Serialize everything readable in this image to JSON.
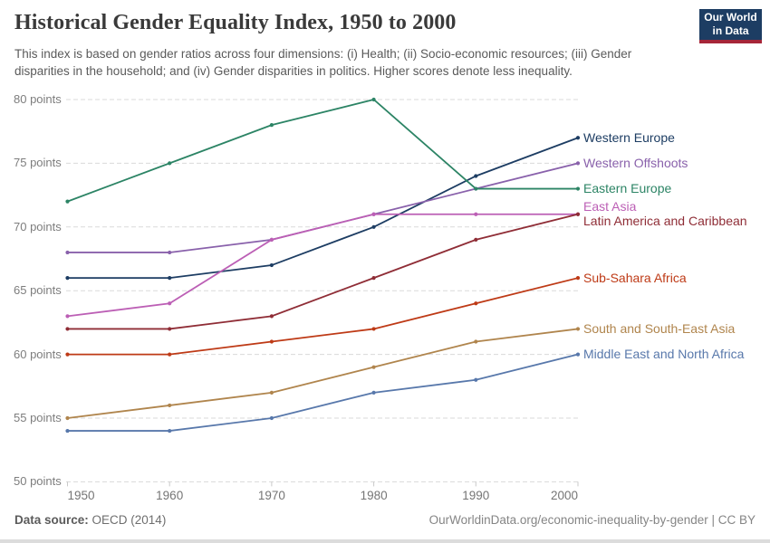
{
  "header": {
    "title": "Historical Gender Equality Index, 1950 to 2000",
    "subtitle": "This index is based on gender ratios across four dimensions: (i) Health; (ii) Socio-economic resources; (iii) Gender disparities in the household; and (iv) Gender disparities in politics. Higher scores denote less inequality.",
    "logo": {
      "line1": "Our World",
      "line2": "in Data",
      "bg_color": "#1d3d63",
      "accent_color": "#a62639"
    }
  },
  "footer": {
    "source_label": "Data source:",
    "source_value": " OECD (2014)",
    "credit": "OurWorldinData.org/economic-inequality-by-gender | CC BY"
  },
  "chart_data": {
    "type": "line",
    "title": "Historical Gender Equality Index, 1950 to 2000",
    "xlabel": "",
    "ylabel": "points",
    "x": [
      1950,
      1960,
      1970,
      1980,
      1990,
      2000
    ],
    "x_tick_labels": [
      "1950",
      "1960",
      "1970",
      "1980",
      "1990",
      "2000"
    ],
    "ylim": [
      50,
      80
    ],
    "ytick_step": 5,
    "y_tick_labels": [
      "50 points",
      "55 points",
      "60 points",
      "65 points",
      "70 points",
      "75 points",
      "80 points"
    ],
    "grid": "horizontal dashed",
    "grid_color": "#dadada",
    "tick_color": "#c9c9c9",
    "legend_position": "right of line ends",
    "series": [
      {
        "name": "Western Europe",
        "color": "#1d3d63",
        "values": [
          66,
          66,
          67,
          70,
          74,
          77
        ]
      },
      {
        "name": "Western Offshoots",
        "color": "#8961ab",
        "values": [
          68,
          68,
          69,
          71,
          73,
          75
        ]
      },
      {
        "name": "Eastern Europe",
        "color": "#2c8465",
        "values": [
          72,
          75,
          78,
          80,
          73,
          73
        ]
      },
      {
        "name": "East Asia",
        "color": "#bc5fb5",
        "values": [
          63,
          64,
          69,
          71,
          71,
          71
        ]
      },
      {
        "name": "Latin America and Caribbean",
        "color": "#8f2d36",
        "values": [
          62,
          62,
          63,
          66,
          69,
          71
        ]
      },
      {
        "name": "Sub-Sahara Africa",
        "color": "#be3a16",
        "values": [
          60,
          60,
          61,
          62,
          64,
          66
        ]
      },
      {
        "name": "South and South-East Asia",
        "color": "#b0854d",
        "values": [
          55,
          56,
          57,
          59,
          61,
          62
        ]
      },
      {
        "name": "Middle East and North Africa",
        "color": "#5878ab",
        "values": [
          54,
          54,
          55,
          57,
          58,
          60
        ]
      }
    ]
  }
}
